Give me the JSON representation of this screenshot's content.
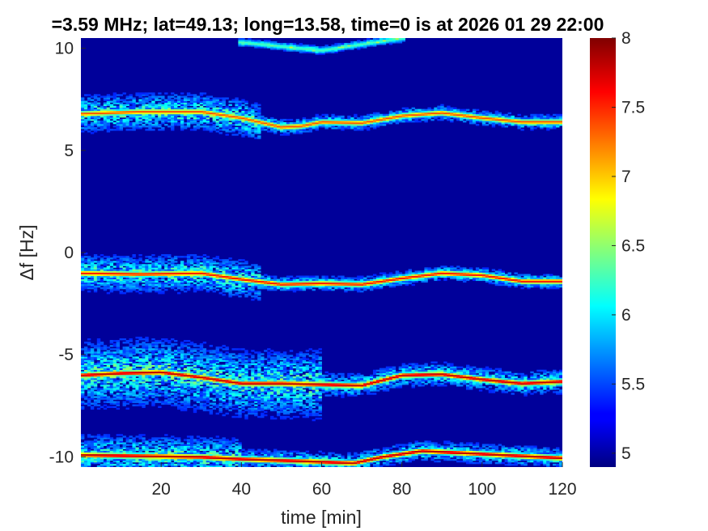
{
  "chart_data": {
    "type": "heatmap",
    "title": "=3.59 MHz;  lat=49.13; long=13.58, time=0 is at 2026 01 29 22:00",
    "xlabel": "time [min]",
    "ylabel": "Δf [Hz]",
    "xlim": [
      0,
      120
    ],
    "ylim": [
      -10.5,
      10.5
    ],
    "x_ticks": [
      20,
      40,
      60,
      80,
      100,
      120
    ],
    "x_tick_labels": [
      "20",
      "40",
      "60",
      "80",
      "100",
      "120"
    ],
    "y_ticks": [
      -10,
      -5,
      0,
      5,
      10
    ],
    "y_tick_labels": [
      "-10",
      "-5",
      "0",
      "5",
      "10"
    ],
    "colorbar": {
      "colormap": "jet",
      "range": [
        4.9,
        8
      ],
      "ticks": [
        5,
        5.5,
        6,
        6.5,
        7,
        7.5,
        8
      ],
      "tick_labels": [
        "5",
        "5.5",
        "6",
        "6.5",
        "7",
        "7.5",
        "8"
      ]
    },
    "background_value": 4.95,
    "traces": [
      {
        "name": "",
        "points": [
          [
            0,
            6.8
          ],
          [
            15,
            6.9
          ],
          [
            30,
            6.9
          ],
          [
            40,
            6.6
          ],
          [
            50,
            6.15
          ],
          [
            55,
            6.2
          ],
          [
            60,
            6.4
          ],
          [
            70,
            6.35
          ],
          [
            80,
            6.7
          ],
          [
            90,
            6.85
          ],
          [
            100,
            6.6
          ],
          [
            110,
            6.4
          ],
          [
            120,
            6.4
          ]
        ],
        "peak": 7.3,
        "spread": 0.45,
        "noise_until": 45,
        "noise_width": 1.1
      },
      {
        "name": "",
        "points": [
          [
            0,
            -1.0
          ],
          [
            15,
            -1.05
          ],
          [
            30,
            -1.0
          ],
          [
            40,
            -1.3
          ],
          [
            50,
            -1.55
          ],
          [
            60,
            -1.5
          ],
          [
            70,
            -1.55
          ],
          [
            80,
            -1.25
          ],
          [
            90,
            -1.0
          ],
          [
            100,
            -1.1
          ],
          [
            110,
            -1.4
          ],
          [
            120,
            -1.4
          ]
        ],
        "peak": 7.5,
        "spread": 0.45,
        "noise_until": 45,
        "noise_width": 1.1
      },
      {
        "name": "",
        "points": [
          [
            0,
            -6.0
          ],
          [
            10,
            -5.9
          ],
          [
            20,
            -5.85
          ],
          [
            30,
            -6.1
          ],
          [
            40,
            -6.4
          ],
          [
            50,
            -6.4
          ],
          [
            60,
            -6.45
          ],
          [
            70,
            -6.5
          ],
          [
            80,
            -6.0
          ],
          [
            90,
            -5.95
          ],
          [
            100,
            -6.2
          ],
          [
            110,
            -6.4
          ],
          [
            120,
            -6.3
          ]
        ],
        "peak": 7.8,
        "spread": 0.7,
        "noise_until": 60,
        "noise_width": 2.0
      },
      {
        "name": "",
        "points": [
          [
            0,
            -9.9
          ],
          [
            15,
            -9.95
          ],
          [
            30,
            -10.0
          ],
          [
            40,
            -10.1
          ],
          [
            55,
            -10.2
          ],
          [
            68,
            -10.3
          ],
          [
            75,
            -10.0
          ],
          [
            85,
            -9.7
          ],
          [
            95,
            -9.8
          ],
          [
            105,
            -9.9
          ],
          [
            120,
            -10.05
          ]
        ],
        "peak": 7.8,
        "spread": 0.6,
        "noise_until": 40,
        "noise_width": 1.2
      },
      {
        "name": "",
        "points": [
          [
            40,
            10.3
          ],
          [
            55,
            10.0
          ],
          [
            60,
            9.9
          ],
          [
            70,
            10.2
          ],
          [
            80,
            10.5
          ]
        ],
        "peak": 6.1,
        "spread": 0.25,
        "noise_until": 0,
        "noise_width": 0.3
      }
    ]
  }
}
